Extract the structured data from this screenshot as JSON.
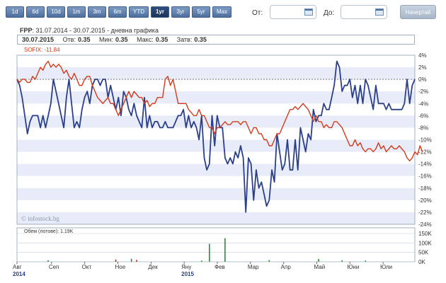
{
  "range_buttons": [
    "1d",
    "6d",
    "10d",
    "1m",
    "3m",
    "6m",
    "YTD",
    "1yr",
    "3yr",
    "5yr",
    "Max"
  ],
  "active_range": "1yr",
  "date_from": {
    "label": "От:",
    "value": ""
  },
  "date_to": {
    "label": "До:",
    "value": ""
  },
  "start_button": "Начертай",
  "chart": {
    "symbol": "FPP",
    "subtitle": ": 31.07.2014 - 30.07.2015 - дневна графика",
    "quote": {
      "date": "30.07.2015",
      "open_label": "Отв:",
      "open": "0.35",
      "low_label": "Мин:",
      "low": "0.35",
      "high_label": "Макс:",
      "high": "0.35",
      "close_label": "Затв:",
      "close": "0.35"
    },
    "legend_sofix": "SOFIX: -11.84",
    "watermark": "© infostock.bg",
    "volume_label": "Обем (лотове): 1.19K"
  },
  "colors": {
    "fpp": "#2b3f8a",
    "sofix": "#d43a1a",
    "volume_up": "#2e8b3a",
    "volume_down": "#c0281c",
    "band": "#e8ecf9"
  },
  "chart_data": {
    "type": "line",
    "title": "FPP",
    "x_labels": [
      "Авг\n2014",
      "Сеп",
      "Окт",
      "Ное",
      "Дек",
      "Яну\n2015",
      "Фев",
      "Мар",
      "Апр",
      "Май",
      "Юни",
      "Юли"
    ],
    "y_ticks": [
      "4%",
      "2%",
      "0%",
      "-2%",
      "-4%",
      "-6%",
      "-8%",
      "-10%",
      "-12%",
      "-14%",
      "-16%",
      "-18%",
      "-20%",
      "-22%",
      "-24%"
    ],
    "ylim": [
      -24,
      4
    ],
    "series": [
      {
        "name": "FPP",
        "values": [
          0,
          -1,
          -3,
          -6,
          -9,
          -7,
          -6,
          -6,
          -6,
          -8,
          -6,
          -8,
          -6,
          -4,
          0,
          -2,
          -4,
          -6,
          -8,
          -3,
          0,
          -4,
          -8,
          -7,
          -8,
          -5,
          -3,
          -2,
          -4,
          -1,
          0,
          0,
          -1,
          0,
          0,
          -3,
          -1,
          -3,
          -5,
          -3,
          -6,
          -2,
          -3,
          -5,
          -6,
          -4,
          -6,
          -7,
          -8,
          -3,
          -8,
          -6,
          -8,
          -7,
          -7,
          -8,
          -8,
          -7,
          -8,
          -8,
          -8,
          -7,
          -6,
          -6,
          -5,
          -8,
          -6,
          -8,
          -7,
          -8,
          -10,
          -6,
          -13,
          -15,
          -14,
          -6,
          -11,
          -6,
          -8,
          -8,
          -13,
          -14,
          -13,
          -14,
          -12,
          -13,
          -11,
          -13,
          -22,
          -13,
          -14,
          -20,
          -15,
          -18,
          -17,
          -19,
          -21,
          -20,
          -15,
          -17,
          -9,
          -12,
          -15,
          -14,
          -10,
          -15,
          -15,
          -10,
          -15,
          -8,
          -10,
          -12,
          -9,
          -10,
          -5,
          -7,
          -6,
          -6,
          -4,
          -5,
          -5,
          -3,
          -1,
          3,
          2,
          -2,
          -1,
          -1,
          0,
          -3,
          -1,
          -4,
          -1,
          -4,
          0,
          -1,
          -3,
          -5,
          -1,
          -4,
          -4,
          -4,
          -5,
          -4,
          -5,
          -5,
          -5,
          -5,
          -5,
          -4,
          0,
          -4,
          -1,
          0
        ],
        "color": "#2b3f8a"
      },
      {
        "name": "SOFIX",
        "values": [
          0,
          -0.5,
          0,
          0,
          -0.5,
          -0.5,
          0.5,
          0,
          1,
          2,
          1.5,
          2.5,
          3,
          2,
          2.5,
          2,
          2.5,
          2,
          1,
          1.5,
          0.5,
          0,
          1,
          0,
          -1,
          -1,
          0,
          0.5,
          0.5,
          -1,
          -2,
          -3,
          -3.5,
          -4,
          -3.5,
          -3,
          -4,
          -4,
          -5,
          -6,
          -5,
          -4,
          -3,
          -2,
          -3,
          -2,
          -2.5,
          -3,
          -3,
          -4,
          -3.5,
          -4.5,
          -4,
          -4,
          -3,
          -3,
          -3,
          0,
          0.5,
          -1,
          0,
          -2,
          -4,
          -4,
          -4,
          -4,
          -5,
          -5.5,
          -6,
          -6,
          -5,
          -6,
          -6,
          -7,
          -8,
          -8,
          -9,
          -8,
          -8,
          -7.5,
          -7,
          -7.5,
          -7.5,
          -7,
          -7,
          -7,
          -7.5,
          -7,
          -7,
          -8,
          -9,
          -8,
          -8,
          -9,
          -9,
          -10,
          -10,
          -11,
          -11,
          -10,
          -9,
          -9,
          -8,
          -7,
          -6,
          -5,
          -5,
          -4.5,
          -5,
          -4.5,
          -4,
          -4.5,
          -5,
          -6,
          -7,
          -6,
          -7,
          -7,
          -8,
          -7.5,
          -8,
          -8,
          -7,
          -7,
          -7.5,
          -8,
          -9,
          -10,
          -11,
          -11,
          -10,
          -11,
          -10.5,
          -11.5,
          -12,
          -11.5,
          -11.5,
          -12,
          -11.5,
          -10.5,
          -11.5,
          -11,
          -12,
          -11.5,
          -11,
          -11.5,
          -11.5,
          -11,
          -11.5,
          -12,
          -13,
          -13.5,
          -13,
          -12,
          -12.5,
          -11,
          -12
        ],
        "color": "#d43a1a"
      }
    ],
    "volume": {
      "yticks": [
        "150K",
        "100K",
        "50K",
        "0K"
      ],
      "ylim": [
        0,
        150
      ],
      "bars": [
        {
          "i": 12,
          "v": 8,
          "dir": "up"
        },
        {
          "i": 38,
          "v": 12,
          "dir": "down"
        },
        {
          "i": 44,
          "v": 16,
          "dir": "up"
        },
        {
          "i": 46,
          "v": 10,
          "dir": "down"
        },
        {
          "i": 71,
          "v": 6,
          "dir": "up"
        },
        {
          "i": 74,
          "v": 95,
          "dir": "up"
        },
        {
          "i": 80,
          "v": 125,
          "dir": "up"
        },
        {
          "i": 97,
          "v": 9,
          "dir": "up"
        },
        {
          "i": 116,
          "v": 15,
          "dir": "up"
        },
        {
          "i": 125,
          "v": 8,
          "dir": "up"
        },
        {
          "i": 134,
          "v": 6,
          "dir": "up"
        }
      ]
    }
  }
}
